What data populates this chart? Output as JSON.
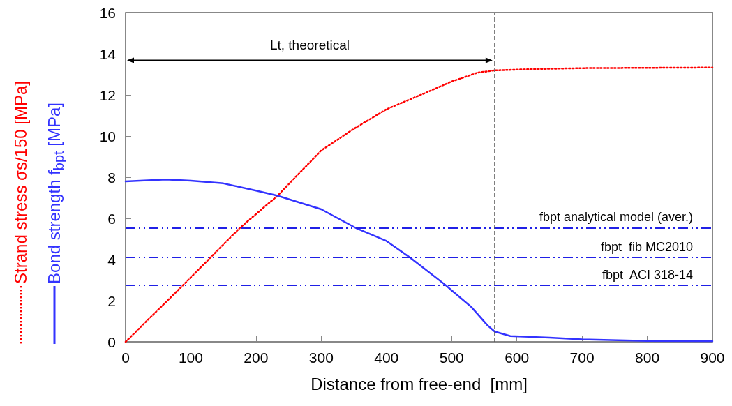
{
  "chart_data": {
    "type": "line",
    "xlabel": "Distance from free-end  [mm]",
    "series": [
      {
        "name": "Strand stress σs/150 [MPa]",
        "color": "#ff0000",
        "line_style": "dotted",
        "x": [
          0,
          89,
          175,
          233,
          300,
          350,
          400,
          460,
          500,
          540,
          566,
          620,
          700,
          900
        ],
        "values": [
          0,
          2.78,
          5.53,
          7.1,
          9.3,
          10.35,
          11.3,
          12.1,
          12.65,
          13.08,
          13.19,
          13.25,
          13.3,
          13.33
        ]
      },
      {
        "name": "Bond strength f$_{bpt}$ [MPa]",
        "color": "#3333ff",
        "line_style": "solid",
        "x": [
          0,
          62,
          100,
          150,
          200,
          233,
          300,
          352,
          400,
          436,
          491,
          500,
          530,
          555,
          566,
          590,
          650,
          700,
          800,
          900
        ],
        "values": [
          7.8,
          7.89,
          7.83,
          7.7,
          7.35,
          7.1,
          6.44,
          5.55,
          4.9,
          4.1,
          2.75,
          2.5,
          1.7,
          0.8,
          0.5,
          0.28,
          0.2,
          0.12,
          0.04,
          0.03
        ]
      }
    ],
    "xlim": [
      0,
      900
    ],
    "xticks": [
      0,
      100,
      200,
      300,
      400,
      500,
      600,
      700,
      800,
      900
    ],
    "ylim": [
      0,
      16
    ],
    "yticks": [
      0,
      2,
      4,
      6,
      8,
      10,
      12,
      14,
      16
    ],
    "grid": false,
    "legend": "left",
    "marker": "none",
    "ref_lines": [
      {
        "axis": "y",
        "value": 5.55,
        "label": "fbpt analytical model (aver.)",
        "color": "#2020e6",
        "line_style": "dashed"
      },
      {
        "axis": "y",
        "value": 4.1,
        "label": "fbpt  fib MC2010",
        "color": "#2020e6",
        "line_style": "dashed"
      },
      {
        "axis": "y",
        "value": 2.75,
        "label": "fbpt  ACI 318-14",
        "color": "#2020e6",
        "line_style": "dashed"
      },
      {
        "axis": "x",
        "value": 566,
        "label": null,
        "color": "#555555",
        "line_style": "dashed"
      }
    ],
    "annotations": [
      "Lt, theoretical"
    ]
  }
}
